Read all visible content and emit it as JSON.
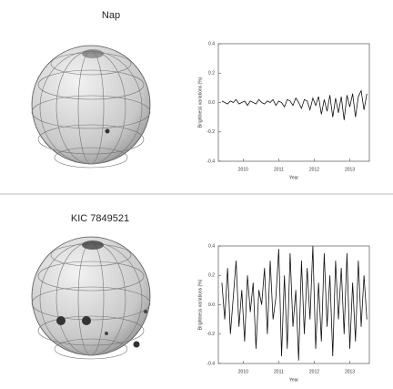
{
  "chart_data": [
    {
      "type": "line",
      "title": "Nap",
      "x_label": "Year",
      "y_label": "Brightness variations (%)",
      "color": "#111111",
      "xlim": [
        2009.3,
        2013.55
      ],
      "xticks": [
        2010,
        2011,
        2012,
        2013
      ],
      "ylim": [
        -0.4,
        0.4
      ],
      "yticks": [
        -0.4,
        -0.2,
        {
          "value": 0,
          "label": "0.0"
        },
        0.2,
        0.4
      ],
      "series": [
        {
          "name": "Nap",
          "color": "#111111",
          "x": [
            2009.4,
            2009.48,
            2009.56,
            2009.64,
            2009.72,
            2009.8,
            2009.88,
            2009.96,
            2010.04,
            2010.12,
            2010.2,
            2010.28,
            2010.36,
            2010.44,
            2010.52,
            2010.6,
            2010.68,
            2010.76,
            2010.84,
            2010.92,
            2011.0,
            2011.08,
            2011.16,
            2011.24,
            2011.32,
            2011.4,
            2011.48,
            2011.56,
            2011.64,
            2011.72,
            2011.8,
            2011.88,
            2011.96,
            2012.04,
            2012.12,
            2012.2,
            2012.28,
            2012.36,
            2012.44,
            2012.52,
            2012.6,
            2012.68,
            2012.76,
            2012.84,
            2012.92,
            2013.0,
            2013.08,
            2013.16,
            2013.24,
            2013.32,
            2013.4,
            2013.48
          ],
          "values": [
            0.01,
            0.0,
            -0.01,
            0.01,
            0.0,
            0.02,
            -0.01,
            0.0,
            0.01,
            -0.02,
            0.01,
            0.0,
            -0.01,
            0.02,
            0.0,
            -0.01,
            0.01,
            0.0,
            0.02,
            -0.02,
            0.01,
            0.0,
            -0.03,
            0.02,
            0.01,
            -0.02,
            0.03,
            0.0,
            -0.04,
            0.02,
            0.01,
            -0.05,
            0.03,
            -0.02,
            0.04,
            -0.08,
            0.02,
            -0.06,
            0.05,
            -0.1,
            0.03,
            -0.07,
            0.04,
            -0.12,
            0.05,
            -0.03,
            0.06,
            -0.1,
            0.04,
            0.08,
            -0.05,
            0.06
          ]
        }
      ]
    },
    {
      "type": "line",
      "title": "KIC 7849521",
      "x_label": "Year",
      "y_label": "Brightness variations (%)",
      "color": "#111111",
      "xlim": [
        2009.3,
        2013.55
      ],
      "xticks": [
        2010,
        2011,
        2012,
        2013
      ],
      "ylim": [
        -0.4,
        0.4
      ],
      "yticks": [
        -0.4,
        -0.2,
        {
          "value": 0,
          "label": "0.0"
        },
        0.2,
        0.4
      ],
      "series": [
        {
          "name": "KIC 7849521",
          "color": "#111111",
          "x": [
            2009.4,
            2009.48,
            2009.56,
            2009.64,
            2009.72,
            2009.8,
            2009.88,
            2009.96,
            2010.04,
            2010.12,
            2010.2,
            2010.28,
            2010.36,
            2010.44,
            2010.52,
            2010.6,
            2010.68,
            2010.76,
            2010.84,
            2010.92,
            2011.0,
            2011.08,
            2011.16,
            2011.24,
            2011.32,
            2011.4,
            2011.48,
            2011.56,
            2011.64,
            2011.72,
            2011.8,
            2011.88,
            2011.96,
            2012.04,
            2012.12,
            2012.2,
            2012.28,
            2012.36,
            2012.44,
            2012.52,
            2012.6,
            2012.68,
            2012.76,
            2012.84,
            2012.92,
            2013.0,
            2013.08,
            2013.16,
            2013.24,
            2013.32,
            2013.4,
            2013.48
          ],
          "values": [
            0.15,
            -0.1,
            0.25,
            -0.2,
            0.05,
            0.3,
            -0.15,
            0.1,
            -0.25,
            0.2,
            -0.05,
            0.15,
            -0.3,
            0.1,
            0.0,
            0.25,
            -0.2,
            0.3,
            -0.1,
            0.05,
            0.38,
            -0.35,
            0.2,
            -0.3,
            0.35,
            -0.15,
            0.1,
            -0.38,
            0.3,
            -0.2,
            0.25,
            -0.1,
            0.4,
            -0.3,
            0.15,
            -0.25,
            0.35,
            -0.15,
            0.2,
            -0.35,
            0.3,
            -0.1,
            0.25,
            -0.2,
            0.35,
            -0.3,
            0.15,
            -0.25,
            0.3,
            -0.15,
            0.2,
            -0.1
          ]
        }
      ]
    }
  ]
}
